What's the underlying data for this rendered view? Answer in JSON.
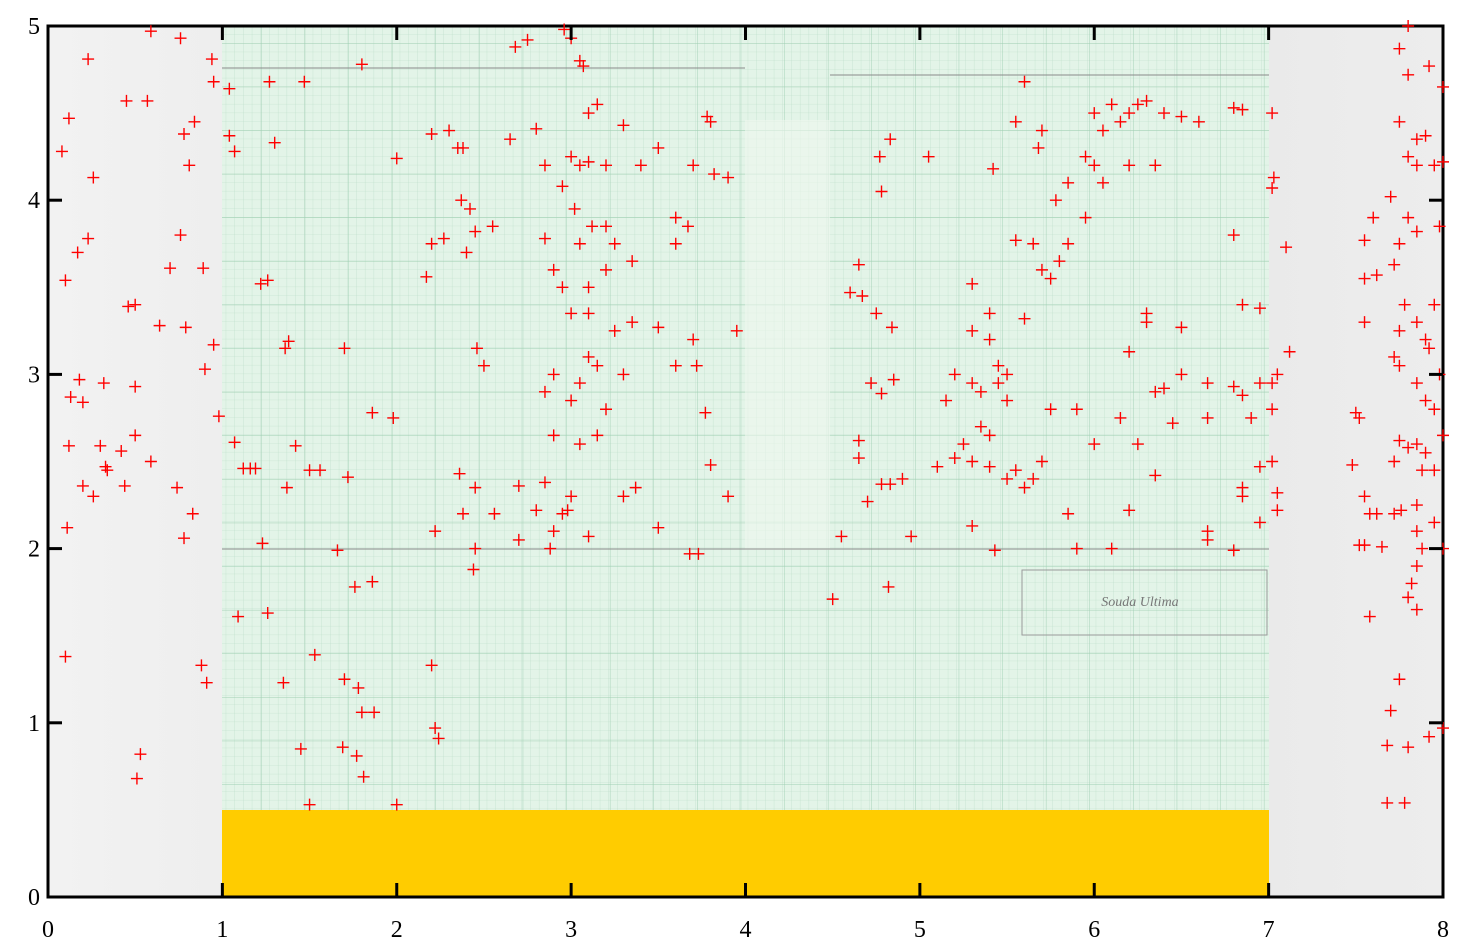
{
  "chart_data": {
    "type": "scatter",
    "color": "#ff0000",
    "xlim": [
      0,
      8
    ],
    "ylim": [
      0,
      5
    ],
    "xticks": [
      0,
      1,
      2,
      3,
      4,
      5,
      6,
      7,
      8
    ],
    "yticks": [
      0,
      1,
      2,
      3,
      4,
      5
    ],
    "x": [
      0.08,
      0.12,
      0.23,
      0.26,
      0.17,
      0.23,
      0.1,
      0.46,
      0.5,
      0.45,
      0.57,
      0.59,
      0.76,
      0.76,
      0.78,
      0.84,
      0.81,
      0.94,
      0.95,
      0.7,
      0.89,
      0.64,
      0.79,
      0.95,
      0.9,
      0.13,
      0.18,
      0.2,
      0.32,
      0.5,
      0.12,
      0.3,
      0.42,
      0.33,
      0.34,
      0.5,
      0.59,
      0.2,
      0.26,
      0.44,
      0.74,
      0.83,
      0.78,
      0.11,
      0.98,
      0.1,
      0.88,
      0.91,
      0.53,
      0.51,
      1.04,
      1.04,
      1.07,
      1.27,
      1.3,
      1.47,
      1.8,
      1.22,
      1.26,
      1.38,
      1.36,
      1.07,
      1.12,
      1.16,
      1.19,
      1.42,
      1.5,
      1.56,
      1.37,
      1.7,
      1.72,
      1.86,
      1.98,
      1.23,
      1.09,
      1.26,
      1.66,
      1.76,
      1.86,
      1.35,
      1.53,
      1.7,
      1.78,
      1.8,
      1.87,
      1.69,
      1.77,
      1.81,
      1.45,
      1.5,
      2.0,
      2.0,
      2.17,
      2.2,
      2.35,
      2.38,
      2.3,
      2.2,
      2.27,
      2.37,
      2.42,
      2.45,
      2.55,
      2.4,
      2.46,
      2.5,
      2.36,
      2.45,
      2.38,
      2.22,
      2.45,
      2.44,
      2.56,
      2.2,
      2.22,
      2.24,
      2.68,
      2.75,
      2.96,
      3.0,
      3.05,
      3.07,
      2.8,
      3.1,
      3.15,
      3.3,
      2.65,
      2.85,
      3.0,
      3.05,
      2.95,
      3.1,
      3.2,
      3.4,
      3.5,
      3.02,
      3.12,
      3.2,
      2.85,
      3.05,
      3.25,
      3.35,
      3.6,
      3.67,
      3.78,
      3.8,
      3.82,
      3.9,
      3.7,
      3.6,
      2.9,
      2.95,
      3.1,
      3.2,
      3.0,
      3.1,
      3.25,
      3.35,
      3.5,
      3.1,
      3.15,
      3.3,
      3.6,
      3.7,
      3.72,
      3.95,
      2.9,
      3.05,
      2.85,
      3.0,
      3.2,
      2.9,
      3.05,
      3.15,
      3.77,
      3.8,
      2.7,
      2.85,
      3.0,
      3.3,
      3.37,
      2.95,
      2.98,
      2.8,
      2.9,
      3.1,
      3.5,
      2.7,
      2.88,
      3.68,
      3.73,
      3.9,
      4.83,
      4.77,
      4.78,
      5.05,
      4.65,
      4.6,
      4.67,
      4.75,
      4.84,
      4.72,
      4.85,
      4.78,
      4.65,
      4.65,
      4.78,
      4.83,
      4.9,
      4.7,
      4.95,
      4.55,
      4.5,
      4.82,
      5.1,
      5.2,
      5.3,
      5.4,
      5.3,
      5.43,
      5.2,
      5.3,
      5.35,
      5.45,
      5.5,
      5.15,
      5.35,
      5.4,
      5.25,
      5.3,
      5.4,
      5.3,
      5.4,
      5.45,
      5.5,
      5.6,
      5.55,
      5.65,
      5.7,
      5.75,
      5.8,
      5.85,
      5.55,
      5.7,
      5.68,
      5.6,
      5.42,
      5.78,
      5.85,
      5.95,
      6.0,
      6.05,
      6.0,
      6.05,
      5.95,
      5.75,
      5.9,
      5.5,
      5.65,
      5.6,
      5.55,
      5.85,
      5.9,
      5.7,
      6.1,
      6.2,
      6.25,
      6.3,
      6.4,
      6.5,
      6.6,
      6.2,
      6.35,
      6.15,
      6.8,
      6.85,
      7.02,
      7.03,
      7.02,
      7.1,
      6.8,
      6.85,
      6.95,
      6.3,
      6.3,
      6.5,
      6.2,
      6.35,
      6.4,
      6.5,
      6.65,
      6.8,
      6.85,
      6.95,
      7.02,
      7.05,
      7.12,
      7.02,
      6.65,
      6.9,
      6.15,
      6.25,
      6.45,
      6.35,
      6.0,
      6.85,
      6.85,
      6.95,
      7.02,
      7.05,
      7.05,
      6.95,
      6.2,
      6.65,
      6.65,
      6.8,
      6.1,
      7.8,
      7.75,
      7.8,
      7.92,
      8.0,
      7.75,
      7.85,
      7.9,
      7.95,
      8.0,
      7.8,
      7.85,
      7.55,
      7.6,
      7.7,
      7.8,
      7.75,
      7.85,
      7.98,
      7.55,
      7.62,
      7.72,
      7.55,
      7.78,
      7.85,
      7.95,
      7.75,
      7.9,
      7.92,
      7.75,
      7.72,
      7.98,
      7.85,
      7.9,
      7.95,
      8.0,
      7.5,
      7.52,
      7.75,
      7.8,
      7.85,
      7.9,
      7.72,
      7.88,
      7.95,
      7.48,
      7.55,
      7.58,
      7.62,
      7.72,
      7.76,
      7.85,
      7.95,
      7.52,
      7.55,
      7.65,
      7.85,
      7.88,
      8.0,
      7.85,
      7.82,
      7.8,
      7.85,
      7.58,
      7.75,
      7.7,
      7.68,
      7.8,
      7.92,
      8.0,
      7.68,
      7.78
    ],
    "values": [
      4.28,
      4.47,
      4.81,
      4.13,
      3.7,
      3.78,
      3.54,
      3.39,
      3.4,
      4.57,
      4.57,
      4.97,
      4.93,
      3.8,
      4.38,
      4.45,
      4.2,
      4.81,
      4.68,
      3.61,
      3.61,
      3.28,
      3.27,
      3.17,
      3.03,
      2.87,
      2.97,
      2.84,
      2.95,
      2.93,
      2.59,
      2.59,
      2.56,
      2.47,
      2.45,
      2.65,
      2.5,
      2.36,
      2.3,
      2.36,
      2.35,
      2.2,
      2.06,
      2.12,
      2.76,
      1.38,
      1.33,
      1.23,
      0.82,
      0.68,
      4.37,
      4.64,
      4.28,
      4.68,
      4.33,
      4.68,
      4.78,
      3.52,
      3.54,
      3.19,
      3.15,
      2.61,
      2.46,
      2.46,
      2.46,
      2.59,
      2.45,
      2.45,
      2.35,
      3.15,
      2.41,
      2.78,
      2.75,
      2.03,
      1.61,
      1.63,
      1.99,
      1.78,
      1.81,
      1.23,
      1.39,
      1.25,
      1.2,
      1.06,
      1.06,
      0.86,
      0.81,
      0.69,
      0.85,
      0.53,
      0.53,
      4.24,
      3.56,
      4.38,
      4.3,
      4.3,
      4.4,
      3.75,
      3.78,
      4.0,
      3.95,
      3.82,
      3.85,
      3.7,
      3.15,
      3.05,
      2.43,
      2.35,
      2.2,
      2.1,
      2.0,
      1.88,
      2.2,
      1.33,
      0.97,
      0.91,
      4.88,
      4.92,
      4.98,
      4.93,
      4.8,
      4.77,
      4.41,
      4.5,
      4.55,
      4.43,
      4.35,
      4.2,
      4.25,
      4.2,
      4.08,
      4.22,
      4.2,
      4.2,
      4.3,
      3.95,
      3.85,
      3.85,
      3.78,
      3.75,
      3.75,
      3.65,
      3.9,
      3.85,
      4.48,
      4.45,
      4.15,
      4.13,
      4.2,
      3.75,
      3.6,
      3.5,
      3.5,
      3.6,
      3.35,
      3.35,
      3.25,
      3.3,
      3.27,
      3.1,
      3.05,
      3.0,
      3.05,
      3.2,
      3.05,
      3.25,
      3.0,
      2.95,
      2.9,
      2.85,
      2.8,
      2.65,
      2.6,
      2.65,
      2.78,
      2.48,
      2.36,
      2.38,
      2.3,
      2.3,
      2.35,
      2.2,
      2.22,
      2.22,
      2.1,
      2.07,
      2.12,
      2.05,
      2.0,
      1.97,
      1.97,
      2.3,
      4.35,
      4.25,
      4.05,
      4.25,
      3.63,
      3.47,
      3.45,
      3.35,
      3.27,
      2.95,
      2.97,
      2.89,
      2.62,
      2.52,
      2.37,
      2.37,
      2.4,
      2.27,
      2.07,
      2.07,
      1.71,
      1.78,
      2.47,
      2.52,
      2.5,
      2.47,
      2.13,
      1.99,
      3.0,
      2.95,
      2.9,
      2.95,
      2.85,
      2.85,
      2.7,
      2.65,
      2.6,
      3.25,
      3.35,
      3.52,
      3.2,
      3.05,
      3.0,
      3.32,
      3.77,
      3.75,
      3.6,
      3.55,
      3.65,
      3.75,
      4.45,
      4.4,
      4.3,
      4.68,
      4.18,
      4.0,
      4.1,
      4.25,
      4.2,
      4.1,
      4.5,
      4.4,
      3.9,
      2.8,
      2.8,
      2.4,
      2.4,
      2.35,
      2.45,
      2.2,
      2.0,
      2.5,
      4.55,
      4.5,
      4.55,
      4.57,
      4.5,
      4.48,
      4.45,
      4.2,
      4.2,
      4.45,
      4.53,
      4.52,
      4.5,
      4.13,
      4.07,
      3.73,
      3.8,
      3.4,
      3.38,
      3.35,
      3.3,
      3.27,
      3.13,
      2.9,
      2.92,
      3.0,
      2.95,
      2.93,
      2.88,
      2.95,
      2.95,
      3.0,
      3.13,
      2.8,
      2.75,
      2.75,
      2.75,
      2.6,
      2.72,
      2.42,
      2.6,
      2.35,
      2.3,
      2.47,
      2.5,
      2.32,
      2.22,
      2.15,
      2.22,
      2.1,
      2.05,
      1.99,
      2.0,
      5.0,
      4.87,
      4.72,
      4.77,
      4.65,
      4.45,
      4.35,
      4.37,
      4.2,
      4.22,
      4.25,
      4.2,
      3.77,
      3.9,
      4.02,
      3.9,
      3.75,
      3.82,
      3.85,
      3.55,
      3.57,
      3.63,
      3.3,
      3.4,
      3.3,
      3.4,
      3.25,
      3.2,
      3.15,
      3.05,
      3.1,
      3.0,
      2.95,
      2.85,
      2.8,
      2.65,
      2.78,
      2.75,
      2.62,
      2.58,
      2.6,
      2.55,
      2.5,
      2.45,
      2.45,
      2.48,
      2.3,
      2.2,
      2.2,
      2.2,
      2.22,
      2.25,
      2.15,
      2.02,
      2.02,
      2.01,
      2.1,
      2.0,
      2.0,
      1.9,
      1.8,
      1.72,
      1.65,
      1.61,
      1.25,
      1.07,
      0.87,
      0.86,
      0.92,
      0.97,
      0.54,
      0.54
    ]
  }
}
